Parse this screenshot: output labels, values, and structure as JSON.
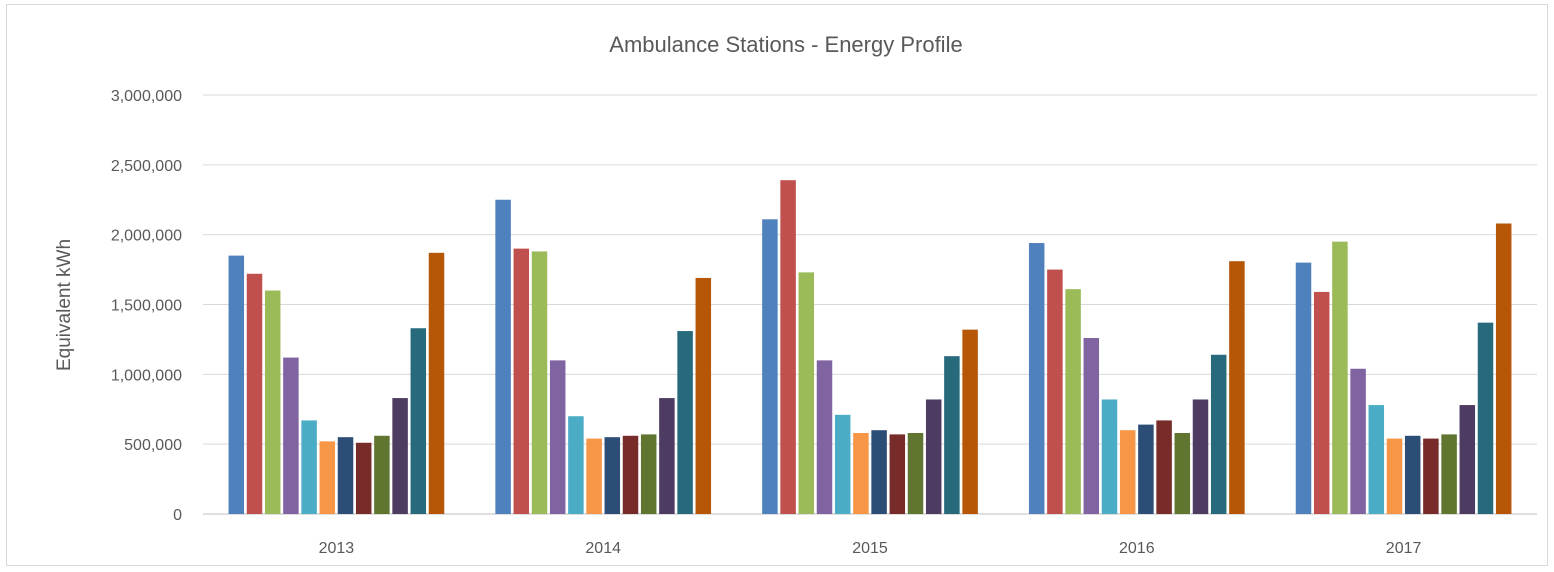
{
  "chart_data": {
    "type": "bar",
    "title": "Ambulance Stations - Energy Profile",
    "xlabel": "",
    "ylabel": "Equivalent kWh",
    "ylim": [
      0,
      3000000
    ],
    "yticks": [
      "0",
      "500,000",
      "1,000,000",
      "1,500,000",
      "2,000,000",
      "2,500,000",
      "3,000,000"
    ],
    "grid": true,
    "legend": "none",
    "categories": [
      "2013",
      "2014",
      "2015",
      "2016",
      "2017"
    ],
    "series": [
      {
        "color": "#4f81bd",
        "values": [
          1850000,
          2250000,
          2110000,
          1940000,
          1800000
        ]
      },
      {
        "color": "#c0504d",
        "values": [
          1720000,
          1900000,
          2390000,
          1750000,
          1590000
        ]
      },
      {
        "color": "#9bbb59",
        "values": [
          1600000,
          1880000,
          1730000,
          1610000,
          1950000
        ]
      },
      {
        "color": "#8064a2",
        "values": [
          1120000,
          1100000,
          1100000,
          1260000,
          1040000
        ]
      },
      {
        "color": "#4bacc6",
        "values": [
          670000,
          700000,
          710000,
          820000,
          780000
        ]
      },
      {
        "color": "#f79646",
        "values": [
          520000,
          540000,
          580000,
          600000,
          540000
        ]
      },
      {
        "color": "#2c4d75",
        "values": [
          550000,
          550000,
          600000,
          640000,
          560000
        ]
      },
      {
        "color": "#772c2a",
        "values": [
          510000,
          560000,
          570000,
          670000,
          540000
        ]
      },
      {
        "color": "#5f7530",
        "values": [
          560000,
          570000,
          580000,
          580000,
          570000
        ]
      },
      {
        "color": "#4d3b62",
        "values": [
          830000,
          830000,
          820000,
          820000,
          780000
        ]
      },
      {
        "color": "#276a7c",
        "values": [
          1330000,
          1310000,
          1130000,
          1140000,
          1370000
        ]
      },
      {
        "color": "#b65708",
        "values": [
          1870000,
          1690000,
          1320000,
          1810000,
          2080000
        ]
      }
    ]
  }
}
